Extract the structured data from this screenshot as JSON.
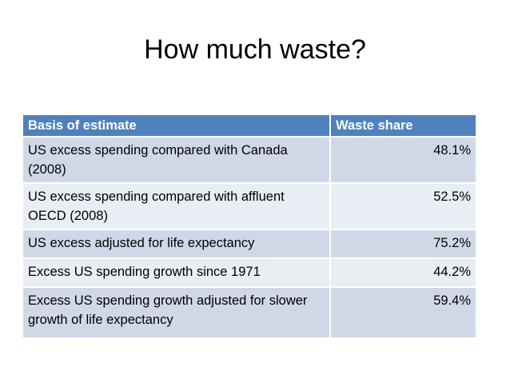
{
  "slide": {
    "title": "How much waste?"
  },
  "table": {
    "headers": [
      "Basis of estimate",
      "Waste share"
    ],
    "rows": [
      {
        "basis": "US excess spending compared with Canada (2008)",
        "share": "48.1%"
      },
      {
        "basis": "US excess spending compared with affluent OECD (2008)",
        "share": "52.5%"
      },
      {
        "basis": "US excess adjusted for life expectancy",
        "share": "75.2%"
      },
      {
        "basis": "Excess US spending growth since 1971",
        "share": "44.2%"
      },
      {
        "basis": "Excess US spending growth adjusted for slower growth of life expectancy",
        "share": "59.4%"
      }
    ]
  },
  "colors": {
    "header_bg": "#4f81bd",
    "row_odd_bg": "#d0d8e8",
    "row_even_bg": "#e9edf4"
  }
}
